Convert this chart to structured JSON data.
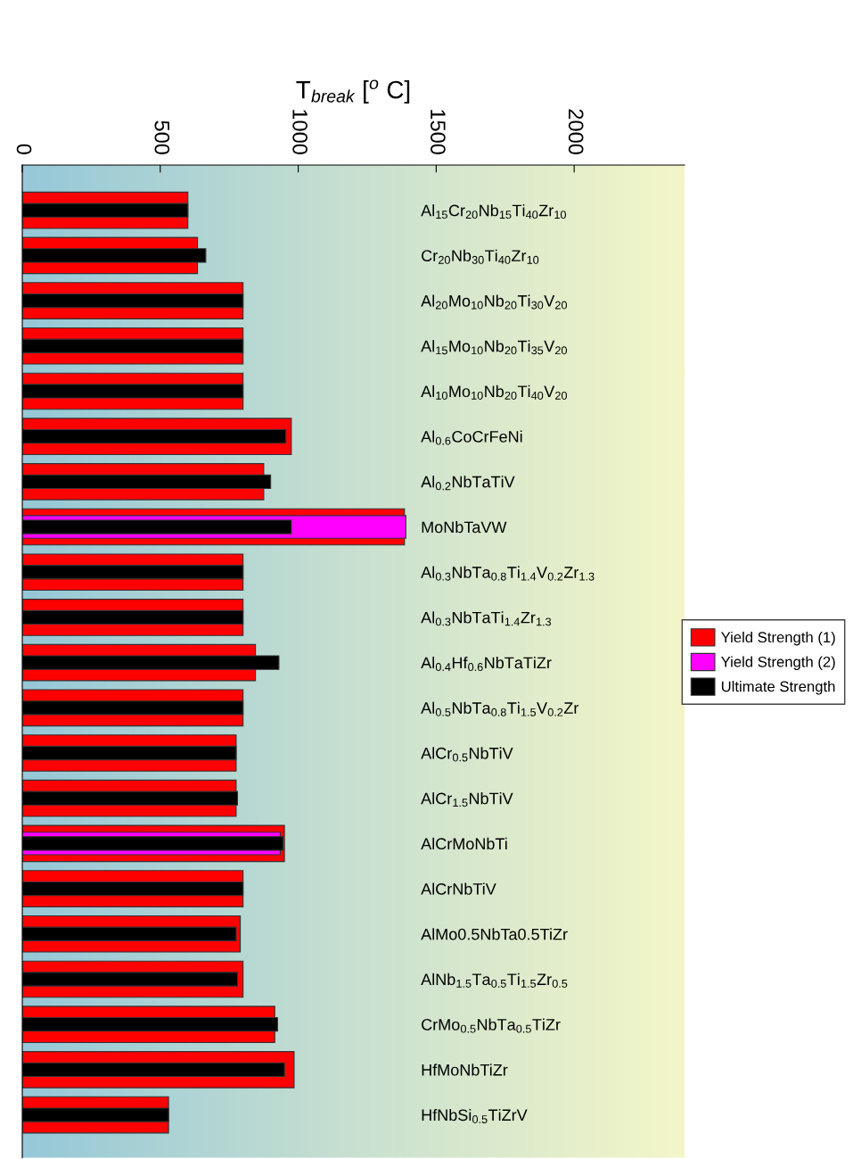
{
  "chart_data": {
    "type": "bar",
    "orientation": "horizontal",
    "xlabel": "T$_{break}$ [$^{o}$ C]",
    "categories": [
      "Al$_{15}$Cr$_{20}$Nb$_{15}$Ti$_{40}$Zr$_{10}$",
      "Cr$_{20}$Nb$_{30}$Ti$_{40}$Zr$_{10}$",
      "Al$_{20}$Mo$_{10}$Nb$_{20}$Ti$_{30}$V$_{20}$",
      "Al$_{15}$Mo$_{10}$Nb$_{20}$Ti$_{35}$V$_{20}$",
      "Al$_{10}$Mo$_{10}$Nb$_{20}$Ti$_{40}$V$_{20}$",
      "Al$_{0.6}$CoCrFeNi",
      "Al$_{0.2}$NbTaTiV",
      "MoNbTaVW",
      "Al$_{0.3}$NbTa$_{0.8}$Ti$_{1.4}$V$_{0.2}$Zr$_{1.3}$",
      "Al$_{0.3}$NbTaTi$_{1.4}$Zr$_{1.3}$",
      "Al$_{0.4}$Hf$_{0.6}$NbTaTiZr",
      "Al$_{0.5}$NbTa$_{0.8}$Ti$_{1.5}$V$_{0.2}$Zr",
      "AlCr$_{0.5}$NbTiV",
      "AlCr$_{1.5}$NbTiV",
      "AlCrMoNbTi",
      "AlCrNbTiV",
      "AlMo0.5NbTa0.5TiZr",
      "AlNb$_{1.5}$Ta$_{0.5}$Ti$_{1.5}$Zr$_{0.5}$",
      "CrMo$_{0.5}$NbTa$_{0.5}$TiZr",
      "HfMoNbTiZr",
      "HfNbSi$_{0.5}$TiZrV"
    ],
    "series": [
      {
        "name": "Yield Strength (1)",
        "color": "#ff0000",
        "values": [
          600,
          635,
          800,
          800,
          800,
          975,
          875,
          1385,
          800,
          800,
          845,
          800,
          775,
          775,
          950,
          800,
          790,
          800,
          915,
          985,
          530
        ]
      },
      {
        "name": "Yield Strength (2)",
        "color": "#ff00ff",
        "values": [
          null,
          null,
          null,
          null,
          null,
          null,
          null,
          1390,
          null,
          null,
          null,
          null,
          null,
          null,
          935,
          null,
          null,
          null,
          null,
          null,
          null
        ]
      },
      {
        "name": "Ultimate Strength",
        "color": "#000000",
        "values": [
          600,
          665,
          800,
          800,
          800,
          955,
          900,
          975,
          800,
          800,
          930,
          800,
          775,
          780,
          945,
          800,
          775,
          780,
          925,
          950,
          530
        ]
      }
    ],
    "xlim": [
      0,
      2400
    ],
    "xticks": [
      0,
      500,
      1000,
      1500,
      2000
    ],
    "legend": "right",
    "grid": false
  }
}
